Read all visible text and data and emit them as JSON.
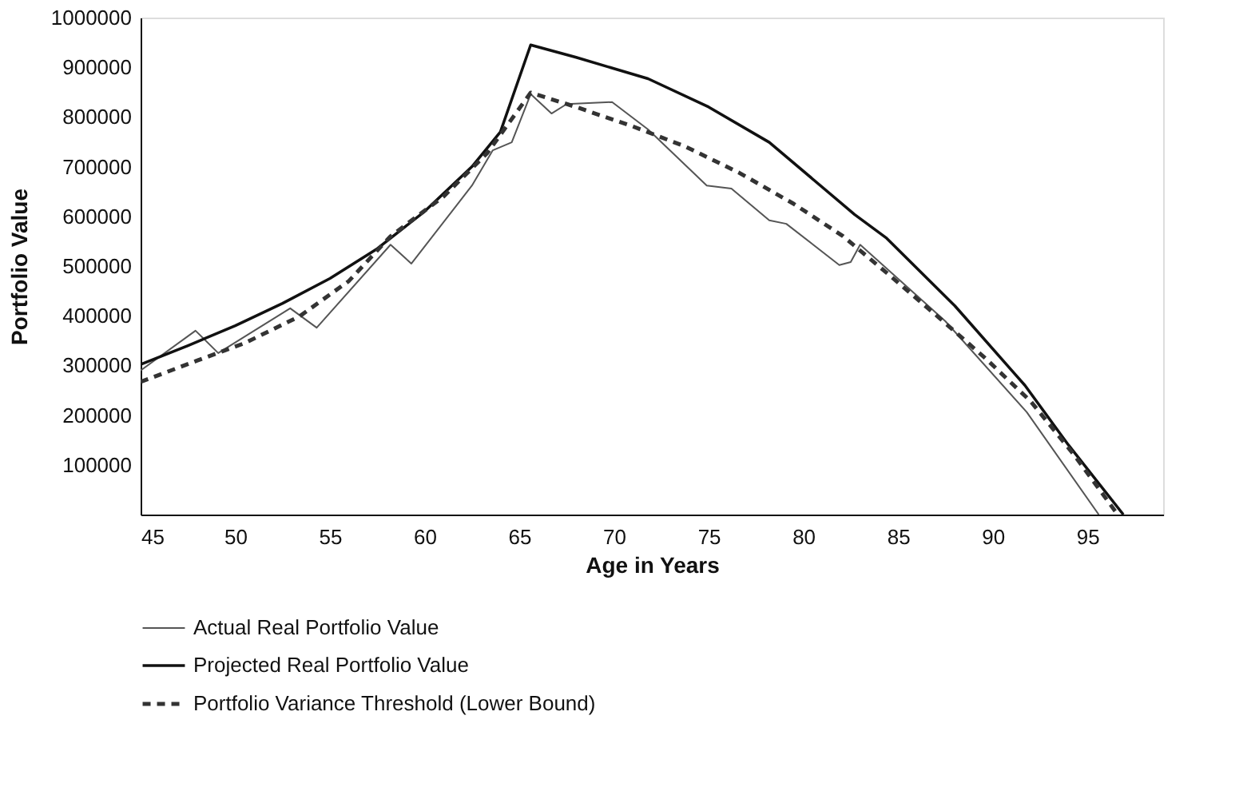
{
  "chart_data": {
    "type": "line",
    "xlabel": "Age in Years",
    "ylabel": "Portfolio Value",
    "xlim": [
      45,
      99
    ],
    "xticks": [
      45,
      50,
      55,
      60,
      65,
      70,
      75,
      80,
      85,
      90,
      95
    ],
    "ylim": [
      0,
      1000000
    ],
    "yticks": [
      100000,
      200000,
      300000,
      400000,
      500000,
      600000,
      700000,
      800000,
      900000,
      1000000
    ],
    "grid": false,
    "legend": "bottom",
    "marker": "none",
    "series": [
      {
        "name": "Actual Real Portfolio Value",
        "color": "#555555",
        "line_style": "solid",
        "x": [
          45,
          47.9,
          49.1,
          52.9,
          54.3,
          58.2,
          59.3,
          62.5,
          63.6,
          64.6,
          65.6,
          66.7,
          67.5,
          69.9,
          71.8,
          74.9,
          76.2,
          78.2,
          79.1,
          81.9,
          82.5,
          83,
          87.5,
          91.8,
          95.6
        ],
        "values": [
          290000,
          370000,
          325000,
          415000,
          376000,
          543000,
          505000,
          662000,
          733000,
          749000,
          846000,
          807000,
          826000,
          830000,
          775000,
          662000,
          656000,
          592000,
          585000,
          502000,
          508000,
          543000,
          389000,
          206000,
          0
        ]
      },
      {
        "name": "Projected Real Portfolio Value",
        "color": "#111111",
        "line_style": "solid",
        "x": [
          45,
          47.5,
          50,
          52.5,
          55,
          57.5,
          60,
          62.5,
          64,
          65.6,
          68,
          71.8,
          75,
          78.2,
          82.7,
          84.4,
          88,
          91.7,
          94,
          96.9
        ],
        "values": [
          302000,
          340000,
          380000,
          425000,
          475000,
          535000,
          610000,
          700000,
          770000,
          945000,
          920000,
          877000,
          820000,
          749000,
          604000,
          556000,
          420000,
          260000,
          140000,
          0
        ]
      },
      {
        "name": "Portfolio Variance Threshold (Lower Bound)",
        "color": "#333333",
        "line_style": "dashed",
        "x": [
          45,
          48,
          50.5,
          53.4,
          56,
          58.2,
          61,
          63.3,
          65.6,
          68,
          71,
          73.8,
          76.6,
          79.5,
          82.1,
          84.6,
          87.2,
          89.6,
          92,
          94.3,
          96.6
        ],
        "values": [
          267000,
          310000,
          345000,
          399000,
          470000,
          560000,
          640000,
          727000,
          849000,
          820000,
          781000,
          740000,
          688000,
          625000,
          560000,
          480000,
          395000,
          315000,
          228000,
          120000,
          0
        ]
      }
    ]
  }
}
